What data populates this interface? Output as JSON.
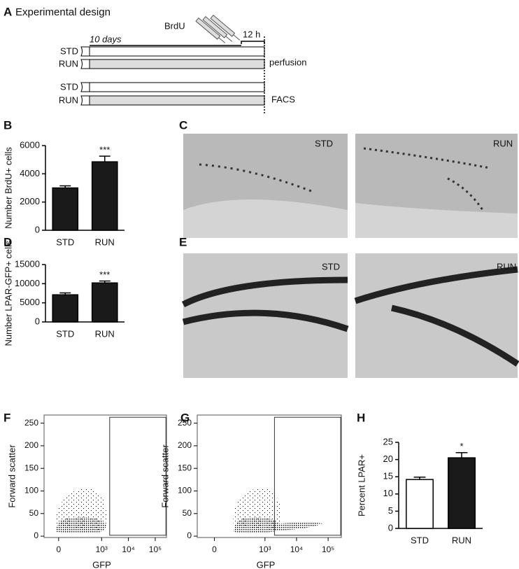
{
  "design": {
    "panel": "A",
    "title": "Experimental design",
    "treatment": "BrdU",
    "duration": "10 days",
    "chase": "12 h",
    "rows": [
      "STD",
      "RUN",
      "STD",
      "RUN"
    ],
    "endpoints": [
      "perfusion",
      "FACS"
    ]
  },
  "images": [
    {
      "panel": "C",
      "captions": [
        "STD",
        "RUN"
      ]
    },
    {
      "panel": "E",
      "captions": [
        "STD",
        "RUN"
      ]
    }
  ],
  "chart_data": [
    {
      "type": "bar",
      "panel": "B",
      "y_label": "Number BrdU+ cells",
      "categories": [
        "STD",
        "RUN"
      ],
      "values": [
        3000,
        4850
      ],
      "errors": [
        150,
        400
      ],
      "colors": [
        "#1a1a1a",
        "#1a1a1a"
      ],
      "significance": [
        null,
        "***"
      ],
      "ylim": [
        0,
        6000
      ],
      "yticks": [
        0,
        2000,
        4000,
        6000
      ]
    },
    {
      "type": "bar",
      "panel": "D",
      "y_label": "Number LPAR-GFP+ cells",
      "categories": [
        "STD",
        "RUN"
      ],
      "values": [
        7100,
        10200
      ],
      "errors": [
        500,
        500
      ],
      "colors": [
        "#1a1a1a",
        "#1a1a1a"
      ],
      "significance": [
        null,
        "***"
      ],
      "ylim": [
        0,
        15000
      ],
      "yticks": [
        0,
        5000,
        10000,
        15000
      ]
    },
    {
      "type": "scatter",
      "panel": "F",
      "y_label": "Forward scatter",
      "x_label": "GFP",
      "xscale": "biexponential",
      "xlim": [
        -80,
        262144
      ],
      "ylim": [
        -3,
        268
      ],
      "yticks": [
        0,
        50,
        100,
        150,
        200,
        250
      ],
      "xticks": [
        0,
        {
          "value": 1000,
          "label": "10³"
        },
        {
          "value": 10000,
          "label": "10⁴"
        },
        {
          "value": 100000,
          "label": "10⁵"
        }
      ],
      "gate": {
        "x": [
          2000,
          250000
        ],
        "y": [
          2,
          263
        ]
      }
    },
    {
      "type": "scatter",
      "panel": "G",
      "y_label": "Forward scatter",
      "x_label": "GFP",
      "xscale": "biexponential",
      "xlim": [
        -80,
        262144
      ],
      "ylim": [
        -3,
        268
      ],
      "yticks": [
        0,
        50,
        100,
        150,
        200,
        250
      ],
      "xticks": [
        0,
        {
          "value": 1000,
          "label": "10³"
        },
        {
          "value": 10000,
          "label": "10⁴"
        },
        {
          "value": 100000,
          "label": "10⁵"
        }
      ],
      "gate": {
        "x": [
          2000,
          250000
        ],
        "y": [
          2,
          263
        ]
      }
    },
    {
      "type": "bar",
      "panel": "H",
      "y_label": "Percent LPAR+",
      "categories": [
        "STD",
        "RUN"
      ],
      "values": [
        14.2,
        20.5
      ],
      "errors": [
        0.7,
        1.5
      ],
      "colors": [
        "#ffffff",
        "#1a1a1a"
      ],
      "significance": [
        null,
        "*"
      ],
      "ylim": [
        0,
        25
      ],
      "yticks": [
        0,
        5,
        10,
        15,
        20,
        25
      ]
    }
  ]
}
